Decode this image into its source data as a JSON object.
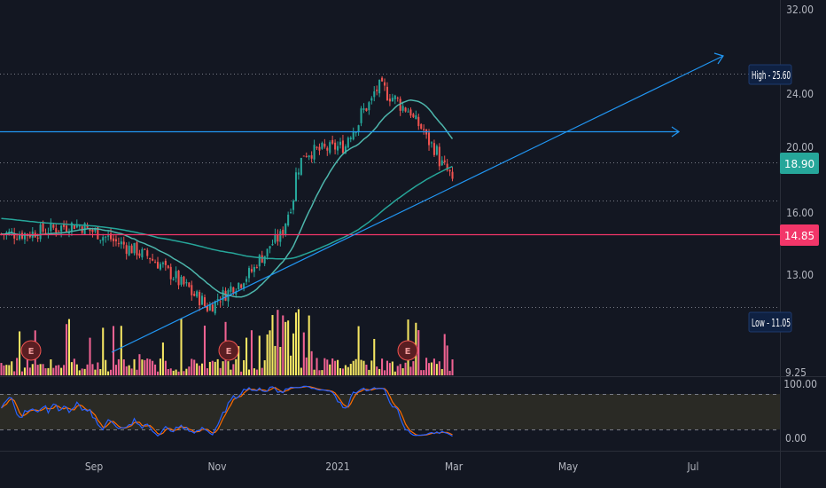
{
  "colors": {
    "background": "#131722",
    "grid": "#363a45",
    "up": "#26a69a",
    "down": "#ef5350",
    "volume_up": "#f5e663",
    "volume_down": "#f06292",
    "trendline": "#2196f3",
    "sma_fast": "#4db6ac",
    "sma_slow": "#26a69a",
    "support": "#f23669",
    "stoch_k": "#2962ff",
    "stoch_d": "#ff6d00",
    "badge_high": "#1c2a4a",
    "badge_last": "#26a69a",
    "badge_support": "#f23669",
    "earnings": "#ef5350"
  },
  "chart_data": {
    "type": "candlestick",
    "price_axis": {
      "ticks": [
        "32.00",
        "24.00",
        "20.00",
        "16.00",
        "13.00",
        "9.25"
      ],
      "scale": "log",
      "range": [
        9.25,
        32.0
      ]
    },
    "oscillator_axis": {
      "ticks": [
        "100.00",
        "0.00"
      ],
      "bands": [
        80,
        20
      ],
      "range": [
        0,
        100
      ]
    },
    "time_axis": {
      "ticks": [
        "Sep",
        "Nov",
        "2021",
        "Mar",
        "May",
        "Jul"
      ]
    },
    "levels": {
      "high": {
        "label": "High - 25.60",
        "value": 25.6
      },
      "last": {
        "label": "18.90",
        "value": 18.9
      },
      "support": {
        "label": "14.85",
        "value": 14.85
      },
      "low": {
        "label": "Low - 11.05",
        "value": 11.05
      },
      "resistance_line": 21.0,
      "dotted_levels": [
        25.6,
        18.9,
        16.6,
        11.5
      ]
    },
    "earnings_markers": [
      "E",
      "E",
      "E"
    ],
    "key_points": [
      {
        "date": "2020-07-15",
        "close": 14.8
      },
      {
        "date": "2020-08-10",
        "close": 15.3
      },
      {
        "date": "2020-09-20",
        "close": 13.6
      },
      {
        "date": "2020-10-20",
        "close": 11.5
      },
      {
        "date": "2020-11-10",
        "close": 12.8
      },
      {
        "date": "2020-11-30",
        "close": 15.0
      },
      {
        "date": "2020-12-10",
        "close": 19.5
      },
      {
        "date": "2021-01-01",
        "close": 20.0
      },
      {
        "date": "2021-01-20",
        "close": 24.5
      },
      {
        "date": "2021-02-05",
        "close": 22.5
      },
      {
        "date": "2021-02-15",
        "close": 20.5
      },
      {
        "date": "2021-03-01",
        "close": 17.5
      }
    ]
  }
}
